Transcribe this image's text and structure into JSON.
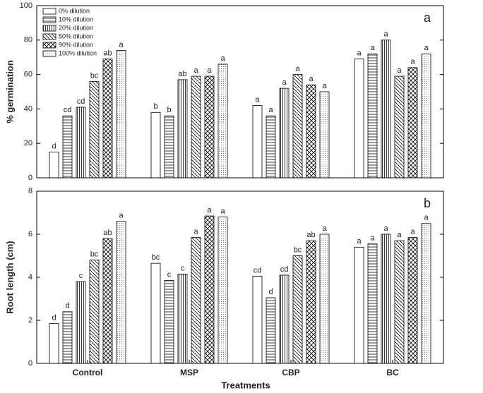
{
  "chart_data": [
    {
      "type": "bar",
      "panel_label": "a",
      "y_label": "% germination",
      "ylim": [
        0,
        100
      ],
      "yticks": [
        0,
        20,
        40,
        60,
        80,
        100
      ],
      "legend": "upper left",
      "series": [
        {
          "name": "0% dilution",
          "color": "#000000",
          "pattern": "none",
          "values": [
            15,
            38,
            42,
            69
          ],
          "annotations": [
            "d",
            "b",
            "a",
            "a"
          ]
        },
        {
          "name": "10% dilution",
          "color": "#000000",
          "pattern": "hlines",
          "values": [
            36,
            36,
            36,
            72
          ],
          "annotations": [
            "cd",
            "b",
            "a",
            "a"
          ]
        },
        {
          "name": "20% dilution",
          "color": "#000000",
          "pattern": "vlines",
          "values": [
            41,
            57,
            52,
            80
          ],
          "annotations": [
            "cd",
            "ab",
            "a",
            "a"
          ]
        },
        {
          "name": "50% dilution",
          "color": "#000000",
          "pattern": "diag",
          "values": [
            56,
            59,
            60,
            59
          ],
          "annotations": [
            "bc",
            "a",
            "a",
            "a"
          ]
        },
        {
          "name": "90% dilution",
          "color": "#000000",
          "pattern": "cross",
          "values": [
            69,
            59,
            54,
            64
          ],
          "annotations": [
            "ab",
            "a",
            "a",
            "a"
          ]
        },
        {
          "name": "100% dilution",
          "color": "#000000",
          "pattern": "dots",
          "values": [
            74,
            66,
            50,
            72
          ],
          "annotations": [
            "a",
            "a",
            "a",
            "a"
          ]
        }
      ]
    },
    {
      "type": "bar",
      "panel_label": "b",
      "y_label": "Root length (cm)",
      "x_label": "Treatments",
      "categories": [
        "Control",
        "MSP",
        "CBP",
        "BC"
      ],
      "ylim": [
        0,
        8
      ],
      "yticks": [
        0,
        2,
        4,
        6,
        8
      ],
      "series": [
        {
          "color": "#000000",
          "pattern": "none",
          "values": [
            1.85,
            4.65,
            4.05,
            5.4
          ],
          "annotations": [
            "d",
            "bc",
            "cd",
            "a"
          ]
        },
        {
          "color": "#000000",
          "pattern": "hlines",
          "values": [
            2.4,
            3.85,
            3.05,
            5.55
          ],
          "annotations": [
            "d",
            "c",
            "d",
            "a"
          ]
        },
        {
          "color": "#000000",
          "pattern": "vlines",
          "values": [
            3.8,
            4.15,
            4.1,
            6.0
          ],
          "annotations": [
            "c",
            "c",
            "cd",
            "a"
          ]
        },
        {
          "color": "#000000",
          "pattern": "diag",
          "values": [
            4.8,
            5.85,
            5.0,
            5.7
          ],
          "annotations": [
            "bc",
            "a",
            "bc",
            "a"
          ]
        },
        {
          "color": "#000000",
          "pattern": "cross",
          "values": [
            5.8,
            6.85,
            5.7,
            5.85
          ],
          "annotations": [
            "ab",
            "a",
            "ab",
            "a"
          ]
        },
        {
          "color": "#000000",
          "pattern": "dots",
          "values": [
            6.6,
            6.8,
            6.0,
            6.5
          ],
          "annotations": [
            "a",
            "a",
            "a",
            "a"
          ]
        }
      ]
    }
  ]
}
